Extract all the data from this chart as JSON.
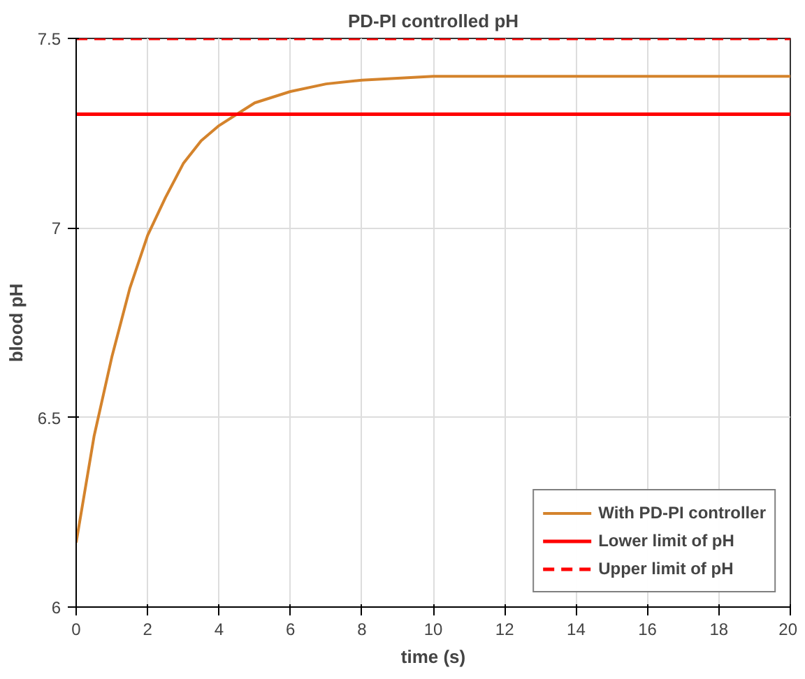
{
  "chart_data": {
    "type": "line",
    "title": "PD-PI controlled pH",
    "xlabel": "time (s)",
    "ylabel": "blood pH",
    "x": [
      0,
      0.5,
      1,
      1.5,
      2,
      2.5,
      3,
      3.5,
      4,
      4.5,
      5,
      6,
      7,
      8,
      10,
      12,
      14,
      16,
      18,
      20
    ],
    "series": [
      {
        "name": "With PD-PI controller",
        "color": "#d4832c",
        "values": [
          6.17,
          6.45,
          6.66,
          6.84,
          6.98,
          7.08,
          7.17,
          7.23,
          7.27,
          7.3,
          7.33,
          7.36,
          7.38,
          7.39,
          7.4,
          7.4,
          7.4,
          7.4,
          7.4,
          7.4
        ]
      }
    ],
    "ref_lines": [
      {
        "axis": "y",
        "value": 7.3,
        "label": "Lower limit of pH",
        "color": "#ff0000",
        "line_style": "solid"
      },
      {
        "axis": "y",
        "value": 7.5,
        "label": "Upper limit of pH",
        "color": "#ff0000",
        "line_style": "dashed"
      }
    ],
    "xlim": [
      0,
      20
    ],
    "xticks": [
      0,
      2,
      4,
      6,
      8,
      10,
      12,
      14,
      16,
      18,
      20
    ],
    "ylim": [
      6,
      7.5
    ],
    "yticks": [
      6,
      6.5,
      7,
      7.5
    ],
    "grid": true,
    "legend": "bottom right",
    "line_style": "solid"
  }
}
